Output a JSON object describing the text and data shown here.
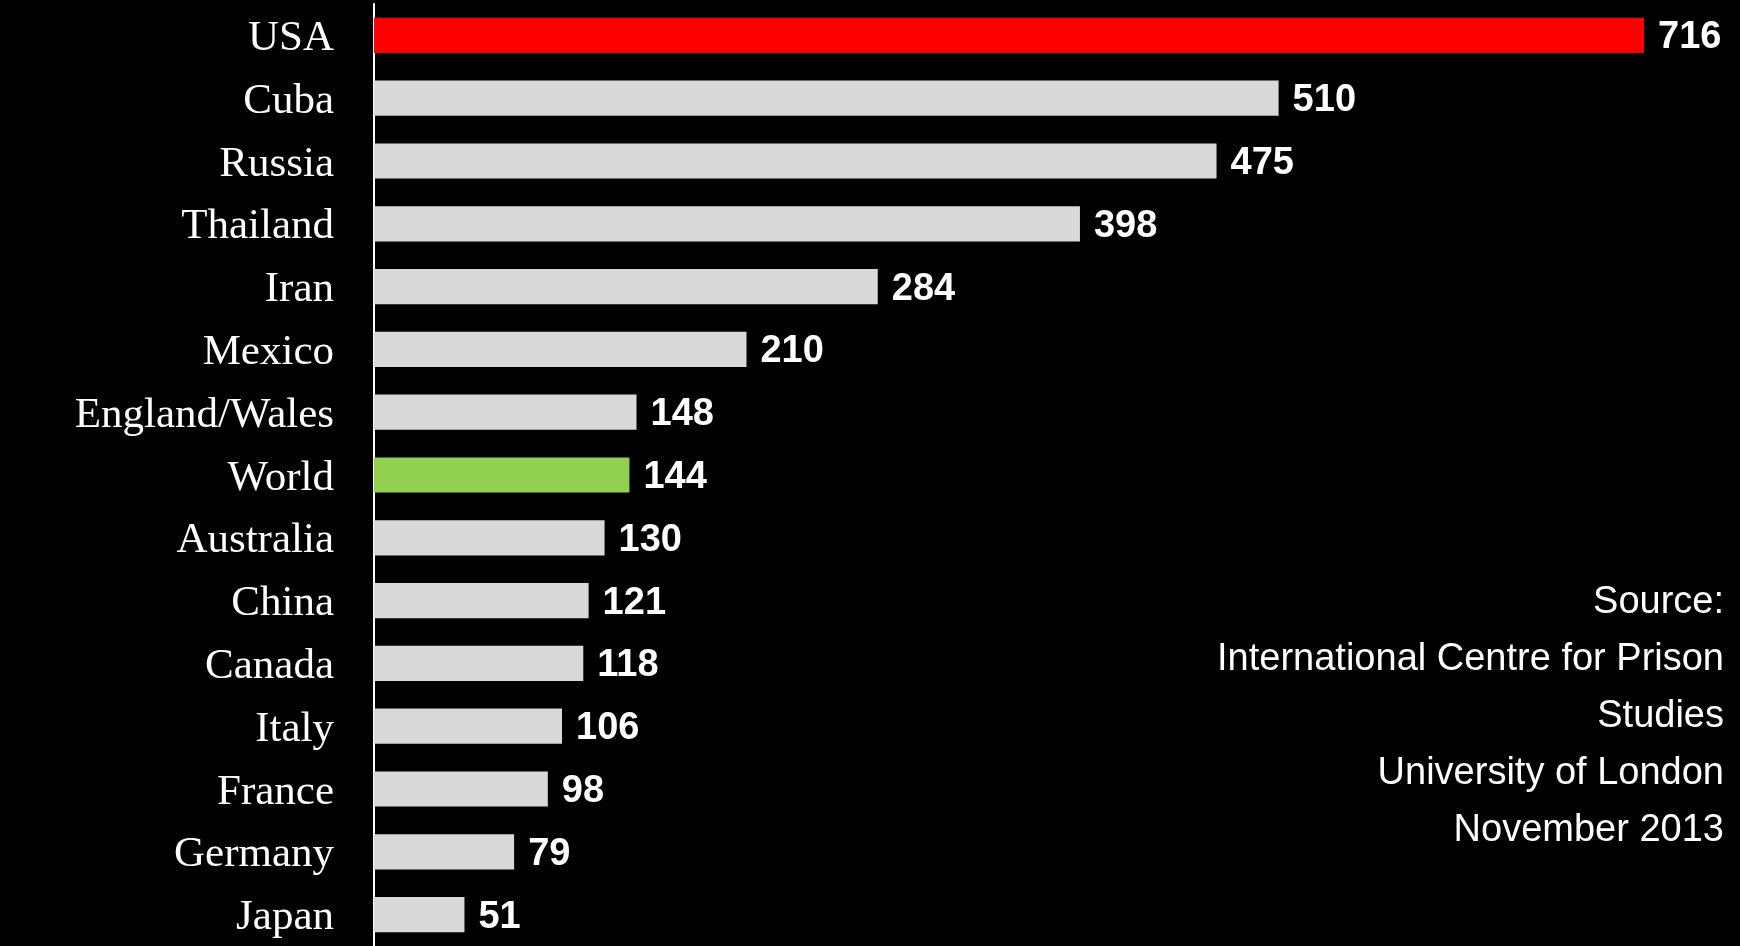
{
  "chart_data": {
    "type": "bar",
    "orientation": "horizontal",
    "categories": [
      "USA",
      "Cuba",
      "Russia",
      "Thailand",
      "Iran",
      "Mexico",
      "England/Wales",
      "World",
      "Australia",
      "China",
      "Canada",
      "Italy",
      "France",
      "Germany",
      "Japan"
    ],
    "values": [
      716,
      510,
      475,
      398,
      284,
      210,
      148,
      144,
      130,
      121,
      118,
      106,
      98,
      79,
      51
    ],
    "colors": [
      "#ff0000",
      "#d9d9d9",
      "#d9d9d9",
      "#d9d9d9",
      "#d9d9d9",
      "#d9d9d9",
      "#d9d9d9",
      "#92d050",
      "#d9d9d9",
      "#d9d9d9",
      "#d9d9d9",
      "#d9d9d9",
      "#d9d9d9",
      "#d9d9d9",
      "#d9d9d9"
    ],
    "data_labels": true,
    "annotations": [
      "Source:\nInternational Centre for Prison Studies\nUniversity of London\nNovember 2013"
    ]
  }
}
